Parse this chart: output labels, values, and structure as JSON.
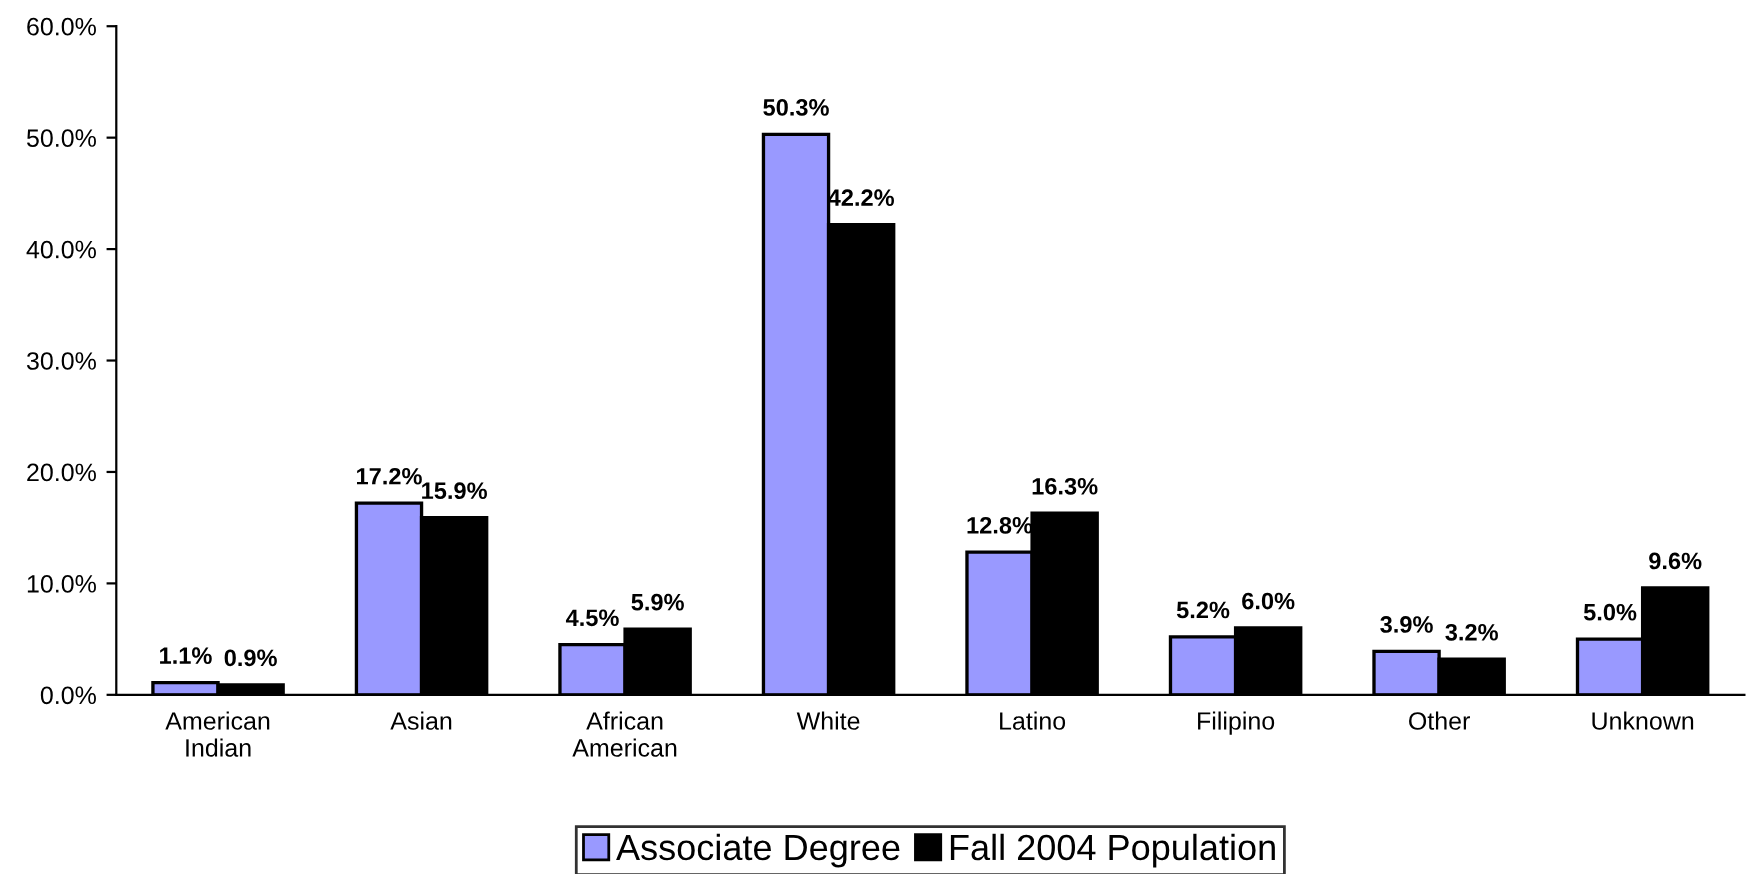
{
  "chart_data": {
    "type": "bar",
    "categories": [
      "American\nIndian",
      "Asian",
      "African\nAmerican",
      "White",
      "Latino",
      "Filipino",
      "Other",
      "Unknown"
    ],
    "series": [
      {
        "name": "Associate Degree",
        "color": "#9999ff",
        "values": [
          1.1,
          17.2,
          4.5,
          50.3,
          12.8,
          5.2,
          3.9,
          5.0
        ],
        "value_labels": [
          "1.1%",
          "17.2%",
          "4.5%",
          "50.3%",
          "12.8%",
          "5.2%",
          "3.9%",
          "5.0%"
        ]
      },
      {
        "name": "Fall 2004 Population",
        "color": "#000000",
        "values": [
          0.9,
          15.9,
          5.9,
          42.2,
          16.3,
          6.0,
          3.2,
          9.6
        ],
        "value_labels": [
          "0.9%",
          "15.9%",
          "5.9%",
          "42.2%",
          "16.3%",
          "6.0%",
          "3.2%",
          "9.6%"
        ]
      }
    ],
    "ylim": [
      0,
      60
    ],
    "yticks": [
      {
        "value": 0,
        "label": "0.0%"
      },
      {
        "value": 10,
        "label": "10.0%"
      },
      {
        "value": 20,
        "label": "20.0%"
      },
      {
        "value": 30,
        "label": "30.0%"
      },
      {
        "value": 40,
        "label": "40.0%"
      },
      {
        "value": 50,
        "label": "50.0%"
      },
      {
        "value": 60,
        "label": "60.0%"
      }
    ],
    "grid": false,
    "legend": "bottom"
  }
}
